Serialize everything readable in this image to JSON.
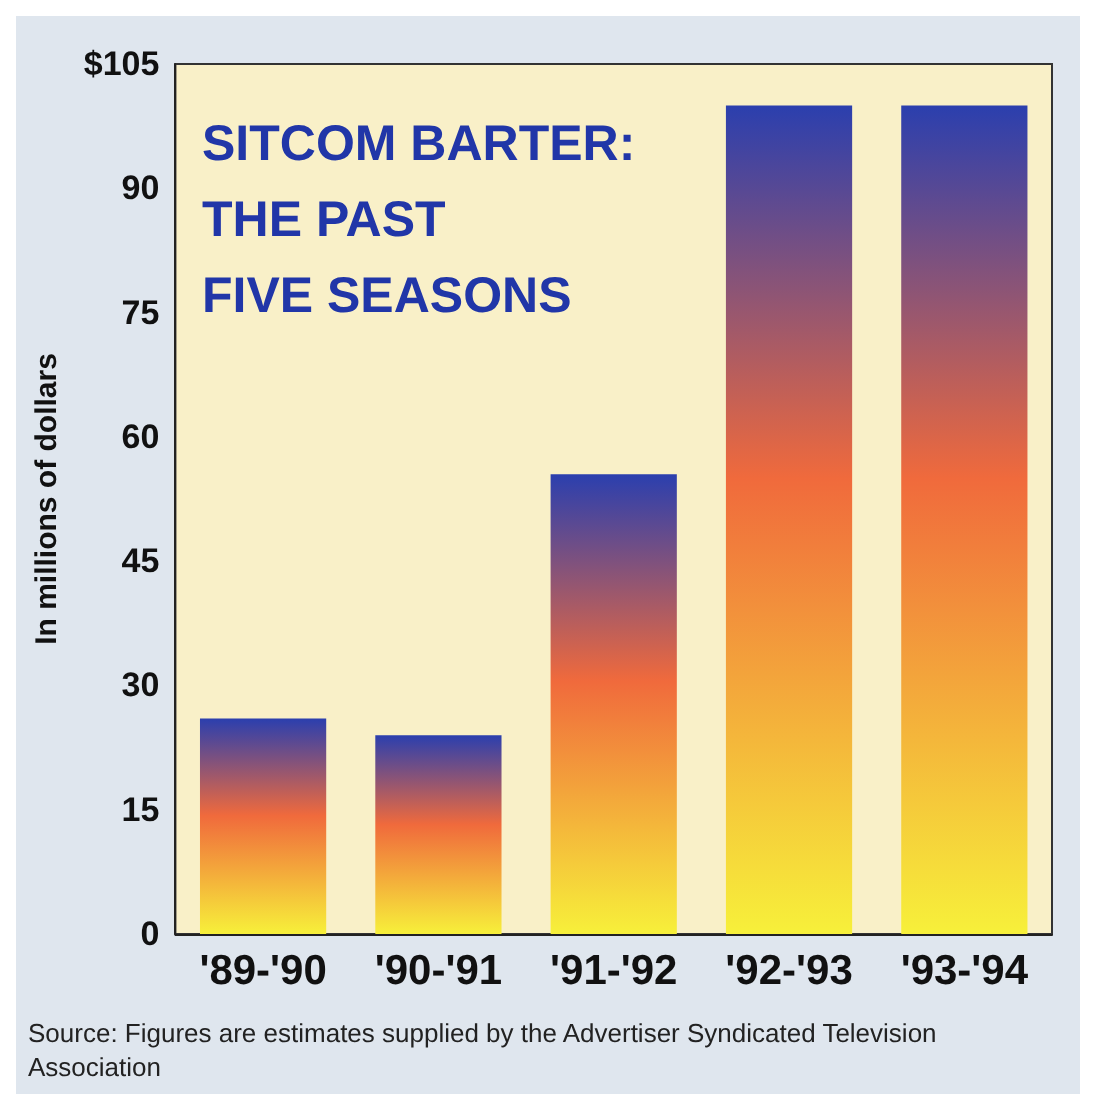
{
  "chart_data": {
    "type": "bar",
    "title": "SITCOM BARTER:\nTHE PAST\nFIVE SEASONS",
    "ylabel": "In millions of dollars",
    "categories": [
      "'89-'90",
      "'90-'91",
      "'91-'92",
      "'92-'93",
      "'93-'94"
    ],
    "values": [
      26,
      24,
      55.5,
      100,
      100
    ],
    "color": "#f06a3c",
    "ylim": [
      0,
      105
    ],
    "yticks": [
      0,
      15,
      30,
      45,
      60,
      75,
      90,
      {
        "value": 105,
        "label": "$105"
      }
    ],
    "grid": false,
    "annotations": [
      "Source: Figures are estimates supplied by the Advertiser Syndicated Television Association"
    ]
  }
}
